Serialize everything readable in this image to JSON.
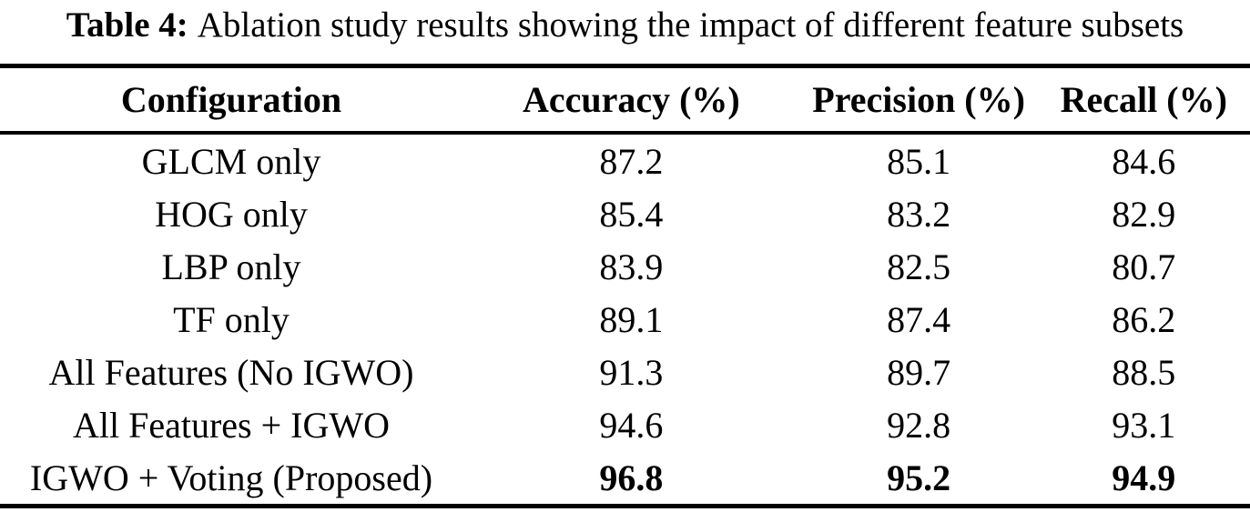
{
  "caption": {
    "label": "Table 4:",
    "text": "Ablation study results showing the impact of different feature subsets"
  },
  "table": {
    "columns": [
      "Configuration",
      "Accuracy (%)",
      "Precision (%)",
      "Recall (%)"
    ],
    "rows": [
      {
        "config": "GLCM only",
        "accuracy": "87.2",
        "precision": "85.1",
        "recall": "84.6",
        "emphasis": false
      },
      {
        "config": "HOG only",
        "accuracy": "85.4",
        "precision": "83.2",
        "recall": "82.9",
        "emphasis": false
      },
      {
        "config": "LBP only",
        "accuracy": "83.9",
        "precision": "82.5",
        "recall": "80.7",
        "emphasis": false
      },
      {
        "config": "TF only",
        "accuracy": "89.1",
        "precision": "87.4",
        "recall": "86.2",
        "emphasis": false
      },
      {
        "config": "All Features (No IGWO)",
        "accuracy": "91.3",
        "precision": "89.7",
        "recall": "88.5",
        "emphasis": false
      },
      {
        "config": "All Features + IGWO",
        "accuracy": "94.6",
        "precision": "92.8",
        "recall": "93.1",
        "emphasis": false
      },
      {
        "config": "IGWO + Voting (Proposed)",
        "accuracy": "96.8",
        "precision": "95.2",
        "recall": "94.9",
        "emphasis": true
      }
    ]
  },
  "colors": {
    "text": "#000000",
    "background": "#ffffff",
    "rule": "#000000"
  }
}
